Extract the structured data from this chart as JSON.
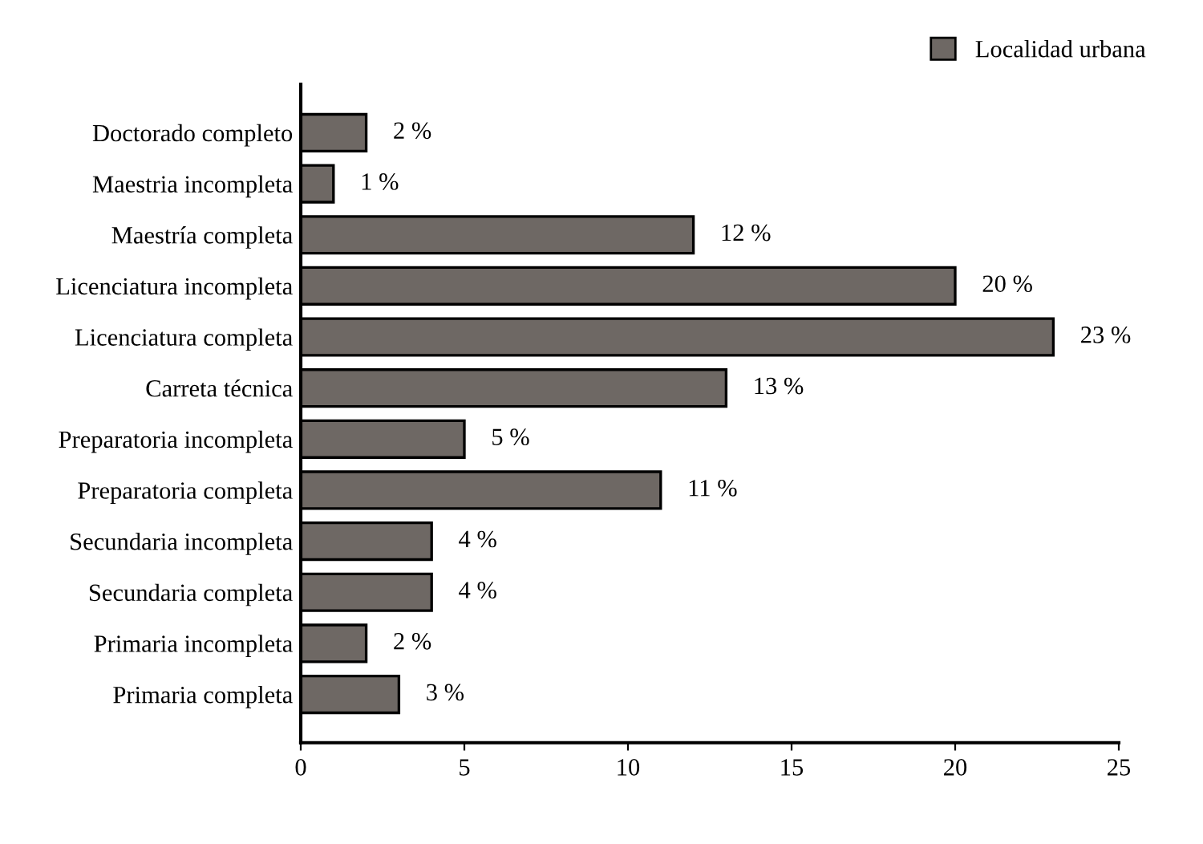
{
  "chart_data": {
    "type": "bar",
    "orientation": "horizontal",
    "categories": [
      "Doctorado completo",
      "Maestria incompleta",
      "Maestría completa",
      "Licenciatura incompleta",
      "Licenciatura completa",
      "Carreta técnica",
      "Preparatoria incompleta",
      "Preparatoria completa",
      "Secundaria incompleta",
      "Secundaria completa",
      "Primaria incompleta",
      "Primaria completa"
    ],
    "series": [
      {
        "name": "Localidad urbana",
        "color": "#6e6864",
        "values": [
          2,
          1,
          12,
          20,
          23,
          13,
          5,
          11,
          4,
          4,
          2,
          3
        ],
        "value_labels": [
          "2 %",
          "1 %",
          "12 %",
          "20 %",
          "23 %",
          "13 %",
          "5 %",
          "11 %",
          "4 %",
          "4 %",
          "2 %",
          "3 %"
        ]
      }
    ],
    "xlim": [
      0,
      25
    ],
    "xticks": [
      0,
      5,
      10,
      15,
      20,
      25
    ],
    "grid": false,
    "legend": "top right"
  }
}
